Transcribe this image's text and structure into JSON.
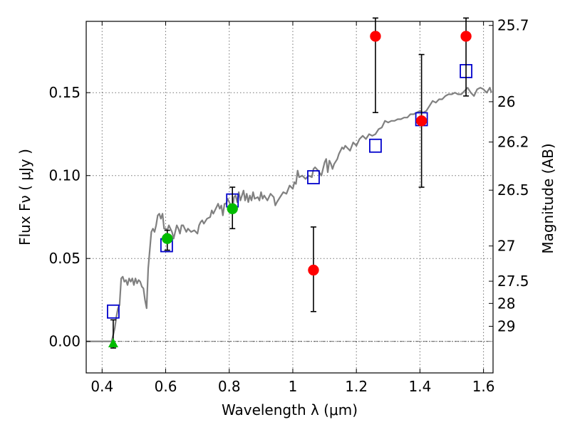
{
  "chart_data": {
    "type": "scatter",
    "title": "",
    "xlabel": "Wavelength  λ (μm)",
    "ylabel": "Flux  Fν  ( μJy )",
    "y2label": "Magnitude (AB)",
    "xlim": [
      0.35,
      1.63
    ],
    "ylim": [
      -0.019,
      0.193
    ],
    "x_ticks": [
      {
        "value": 0.4,
        "label": "0.4"
      },
      {
        "value": 0.6,
        "label": "0.6"
      },
      {
        "value": 0.8,
        "label": "0.8"
      },
      {
        "value": 1.0,
        "label": "1"
      },
      {
        "value": 1.2,
        "label": "1.2"
      },
      {
        "value": 1.4,
        "label": "1.4"
      },
      {
        "value": 1.6,
        "label": "1.6"
      }
    ],
    "y_ticks": [
      {
        "value": 0.0,
        "label": "0.00"
      },
      {
        "value": 0.05,
        "label": "0.05"
      },
      {
        "value": 0.1,
        "label": "0.10"
      },
      {
        "value": 0.15,
        "label": "0.15"
      }
    ],
    "y2_ticks": [
      {
        "value": 25.7,
        "label": "25.7"
      },
      {
        "value": 26,
        "label": "26"
      },
      {
        "value": 26.2,
        "label": "26.2"
      },
      {
        "value": 26.5,
        "label": "26.5"
      },
      {
        "value": 27,
        "label": "27"
      },
      {
        "value": 27.5,
        "label": "27.5"
      },
      {
        "value": 28,
        "label": "28"
      },
      {
        "value": 29,
        "label": "29"
      }
    ],
    "grid": true,
    "zero_line": 0.0,
    "series": [
      {
        "kind": "line",
        "color": "#808080",
        "points": [
          [
            0.35,
            0.0
          ],
          [
            0.42,
            0.0
          ],
          [
            0.43,
            0.0
          ],
          [
            0.44,
            0.008
          ],
          [
            0.445,
            0.015
          ],
          [
            0.45,
            0.02
          ],
          [
            0.455,
            0.022
          ],
          [
            0.46,
            0.038
          ],
          [
            0.465,
            0.039
          ],
          [
            0.47,
            0.036
          ],
          [
            0.475,
            0.037
          ],
          [
            0.48,
            0.034
          ],
          [
            0.485,
            0.038
          ],
          [
            0.49,
            0.036
          ],
          [
            0.495,
            0.038
          ],
          [
            0.5,
            0.034
          ],
          [
            0.505,
            0.038
          ],
          [
            0.51,
            0.035
          ],
          [
            0.515,
            0.037
          ],
          [
            0.52,
            0.036
          ],
          [
            0.525,
            0.033
          ],
          [
            0.53,
            0.032
          ],
          [
            0.535,
            0.025
          ],
          [
            0.54,
            0.02
          ],
          [
            0.545,
            0.044
          ],
          [
            0.55,
            0.055
          ],
          [
            0.555,
            0.066
          ],
          [
            0.56,
            0.068
          ],
          [
            0.565,
            0.066
          ],
          [
            0.57,
            0.07
          ],
          [
            0.575,
            0.076
          ],
          [
            0.58,
            0.077
          ],
          [
            0.585,
            0.074
          ],
          [
            0.59,
            0.077
          ],
          [
            0.595,
            0.068
          ],
          [
            0.6,
            0.068
          ],
          [
            0.605,
            0.067
          ],
          [
            0.61,
            0.07
          ],
          [
            0.615,
            0.068
          ],
          [
            0.62,
            0.066
          ],
          [
            0.625,
            0.062
          ],
          [
            0.63,
            0.066
          ],
          [
            0.635,
            0.07
          ],
          [
            0.64,
            0.068
          ],
          [
            0.645,
            0.065
          ],
          [
            0.65,
            0.07
          ],
          [
            0.655,
            0.07
          ],
          [
            0.66,
            0.068
          ],
          [
            0.665,
            0.066
          ],
          [
            0.67,
            0.068
          ],
          [
            0.68,
            0.066
          ],
          [
            0.69,
            0.067
          ],
          [
            0.7,
            0.065
          ],
          [
            0.705,
            0.07
          ],
          [
            0.71,
            0.072
          ],
          [
            0.715,
            0.073
          ],
          [
            0.72,
            0.071
          ],
          [
            0.73,
            0.074
          ],
          [
            0.74,
            0.075
          ],
          [
            0.745,
            0.079
          ],
          [
            0.75,
            0.077
          ],
          [
            0.76,
            0.081
          ],
          [
            0.765,
            0.083
          ],
          [
            0.77,
            0.08
          ],
          [
            0.775,
            0.082
          ],
          [
            0.78,
            0.076
          ],
          [
            0.785,
            0.083
          ],
          [
            0.79,
            0.083
          ],
          [
            0.795,
            0.086
          ],
          [
            0.8,
            0.084
          ],
          [
            0.805,
            0.082
          ],
          [
            0.81,
            0.079
          ],
          [
            0.815,
            0.087
          ],
          [
            0.82,
            0.088
          ],
          [
            0.825,
            0.084
          ],
          [
            0.83,
            0.09
          ],
          [
            0.835,
            0.085
          ],
          [
            0.84,
            0.088
          ],
          [
            0.845,
            0.091
          ],
          [
            0.85,
            0.085
          ],
          [
            0.855,
            0.089
          ],
          [
            0.86,
            0.084
          ],
          [
            0.865,
            0.088
          ],
          [
            0.87,
            0.085
          ],
          [
            0.875,
            0.09
          ],
          [
            0.88,
            0.086
          ],
          [
            0.89,
            0.087
          ],
          [
            0.895,
            0.085
          ],
          [
            0.9,
            0.09
          ],
          [
            0.905,
            0.086
          ],
          [
            0.91,
            0.088
          ],
          [
            0.92,
            0.085
          ],
          [
            0.93,
            0.089
          ],
          [
            0.94,
            0.087
          ],
          [
            0.945,
            0.082
          ],
          [
            0.95,
            0.084
          ],
          [
            0.96,
            0.087
          ],
          [
            0.97,
            0.09
          ],
          [
            0.98,
            0.089
          ],
          [
            0.99,
            0.094
          ],
          [
            1.0,
            0.092
          ],
          [
            1.005,
            0.096
          ],
          [
            1.01,
            0.095
          ],
          [
            1.015,
            0.103
          ],
          [
            1.02,
            0.099
          ],
          [
            1.03,
            0.1
          ],
          [
            1.04,
            0.098
          ],
          [
            1.05,
            0.1
          ],
          [
            1.06,
            0.099
          ],
          [
            1.065,
            0.104
          ],
          [
            1.07,
            0.105
          ],
          [
            1.08,
            0.103
          ],
          [
            1.09,
            0.1
          ],
          [
            1.1,
            0.108
          ],
          [
            1.105,
            0.11
          ],
          [
            1.11,
            0.102
          ],
          [
            1.115,
            0.109
          ],
          [
            1.12,
            0.107
          ],
          [
            1.125,
            0.104
          ],
          [
            1.13,
            0.107
          ],
          [
            1.14,
            0.11
          ],
          [
            1.145,
            0.113
          ],
          [
            1.15,
            0.115
          ],
          [
            1.155,
            0.117
          ],
          [
            1.16,
            0.116
          ],
          [
            1.165,
            0.118
          ],
          [
            1.17,
            0.117
          ],
          [
            1.18,
            0.115
          ],
          [
            1.19,
            0.12
          ],
          [
            1.2,
            0.118
          ],
          [
            1.21,
            0.122
          ],
          [
            1.22,
            0.124
          ],
          [
            1.23,
            0.122
          ],
          [
            1.24,
            0.125
          ],
          [
            1.25,
            0.124
          ],
          [
            1.26,
            0.125
          ],
          [
            1.27,
            0.128
          ],
          [
            1.28,
            0.129
          ],
          [
            1.29,
            0.133
          ],
          [
            1.3,
            0.132
          ],
          [
            1.31,
            0.133
          ],
          [
            1.32,
            0.133
          ],
          [
            1.33,
            0.134
          ],
          [
            1.34,
            0.134
          ],
          [
            1.35,
            0.135
          ],
          [
            1.36,
            0.135
          ],
          [
            1.37,
            0.137
          ],
          [
            1.38,
            0.137
          ],
          [
            1.39,
            0.138
          ],
          [
            1.4,
            0.139
          ],
          [
            1.41,
            0.138
          ],
          [
            1.42,
            0.139
          ],
          [
            1.43,
            0.142
          ],
          [
            1.44,
            0.145
          ],
          [
            1.45,
            0.144
          ],
          [
            1.46,
            0.146
          ],
          [
            1.47,
            0.146
          ],
          [
            1.48,
            0.148
          ],
          [
            1.49,
            0.149
          ],
          [
            1.5,
            0.149
          ],
          [
            1.51,
            0.15
          ],
          [
            1.52,
            0.149
          ],
          [
            1.53,
            0.149
          ],
          [
            1.54,
            0.151
          ],
          [
            1.55,
            0.153
          ],
          [
            1.56,
            0.15
          ],
          [
            1.57,
            0.148
          ],
          [
            1.58,
            0.152
          ],
          [
            1.59,
            0.153
          ],
          [
            1.6,
            0.152
          ],
          [
            1.61,
            0.15
          ],
          [
            1.62,
            0.153
          ],
          [
            1.625,
            0.15
          ]
        ]
      },
      {
        "kind": "squares",
        "color": "#0000cc",
        "points": [
          [
            0.435,
            0.018
          ],
          [
            0.603,
            0.058
          ],
          [
            0.81,
            0.085
          ],
          [
            1.065,
            0.099
          ],
          [
            1.26,
            0.118
          ],
          [
            1.405,
            0.134
          ],
          [
            1.545,
            0.163
          ]
        ]
      },
      {
        "kind": "errorbars",
        "color": "#000000",
        "points": [
          {
            "x": 0.435,
            "y": 0.005,
            "lo": -0.004,
            "hi": 0.013
          },
          {
            "x": 0.605,
            "y": 0.062,
            "lo": 0.055,
            "hi": 0.067
          },
          {
            "x": 0.81,
            "y": 0.08,
            "lo": 0.068,
            "hi": 0.093
          },
          {
            "x": 1.065,
            "y": 0.043,
            "lo": 0.018,
            "hi": 0.069
          },
          {
            "x": 1.26,
            "y": 0.184,
            "lo": 0.138,
            "hi": 0.195
          },
          {
            "x": 1.405,
            "y": 0.133,
            "lo": 0.093,
            "hi": 0.173
          },
          {
            "x": 1.545,
            "y": 0.184,
            "lo": 0.148,
            "hi": 0.195
          }
        ]
      },
      {
        "kind": "circles",
        "color": "#00bb00",
        "points": [
          [
            0.605,
            0.062
          ],
          [
            0.81,
            0.08
          ]
        ]
      },
      {
        "kind": "circles",
        "color": "#ff0000",
        "points": [
          [
            1.065,
            0.043
          ],
          [
            1.26,
            0.184
          ],
          [
            1.405,
            0.133
          ],
          [
            1.545,
            0.184
          ]
        ]
      },
      {
        "kind": "triangles",
        "color": "#00bb00",
        "points": [
          [
            0.435,
            -0.001
          ]
        ]
      }
    ]
  }
}
